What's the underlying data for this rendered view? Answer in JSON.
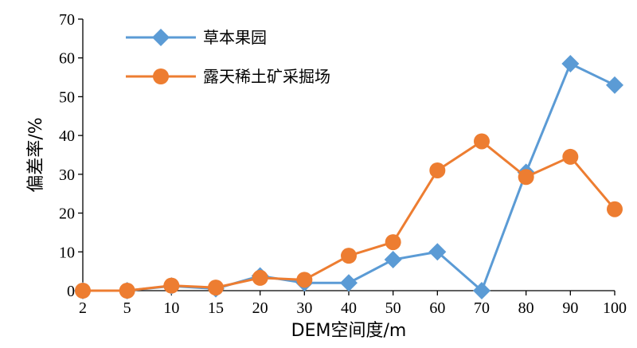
{
  "chart_data": {
    "type": "line",
    "categories": [
      "2",
      "5",
      "10",
      "15",
      "20",
      "30",
      "40",
      "50",
      "60",
      "70",
      "80",
      "90",
      "100"
    ],
    "series": [
      {
        "name": "草本果园",
        "color": "#5b9bd5",
        "marker": "diamond",
        "values": [
          0,
          0,
          1.2,
          0.5,
          3.8,
          2,
          2,
          8,
          10,
          0,
          30.5,
          58.5,
          53
        ]
      },
      {
        "name": "露天稀土矿采掘场",
        "color": "#ed7d31",
        "marker": "circle",
        "values": [
          0,
          0,
          1.3,
          0.8,
          3.3,
          2.8,
          9,
          12.5,
          31,
          38.5,
          29.3,
          34.5,
          21
        ]
      }
    ],
    "xlabel": "DEM空间度/m",
    "ylabel": "偏差率/%",
    "ylim": [
      0,
      70
    ],
    "yticks": [
      0,
      10,
      20,
      30,
      40,
      50,
      60,
      70
    ],
    "grid": false,
    "legend_position": "top-left"
  }
}
